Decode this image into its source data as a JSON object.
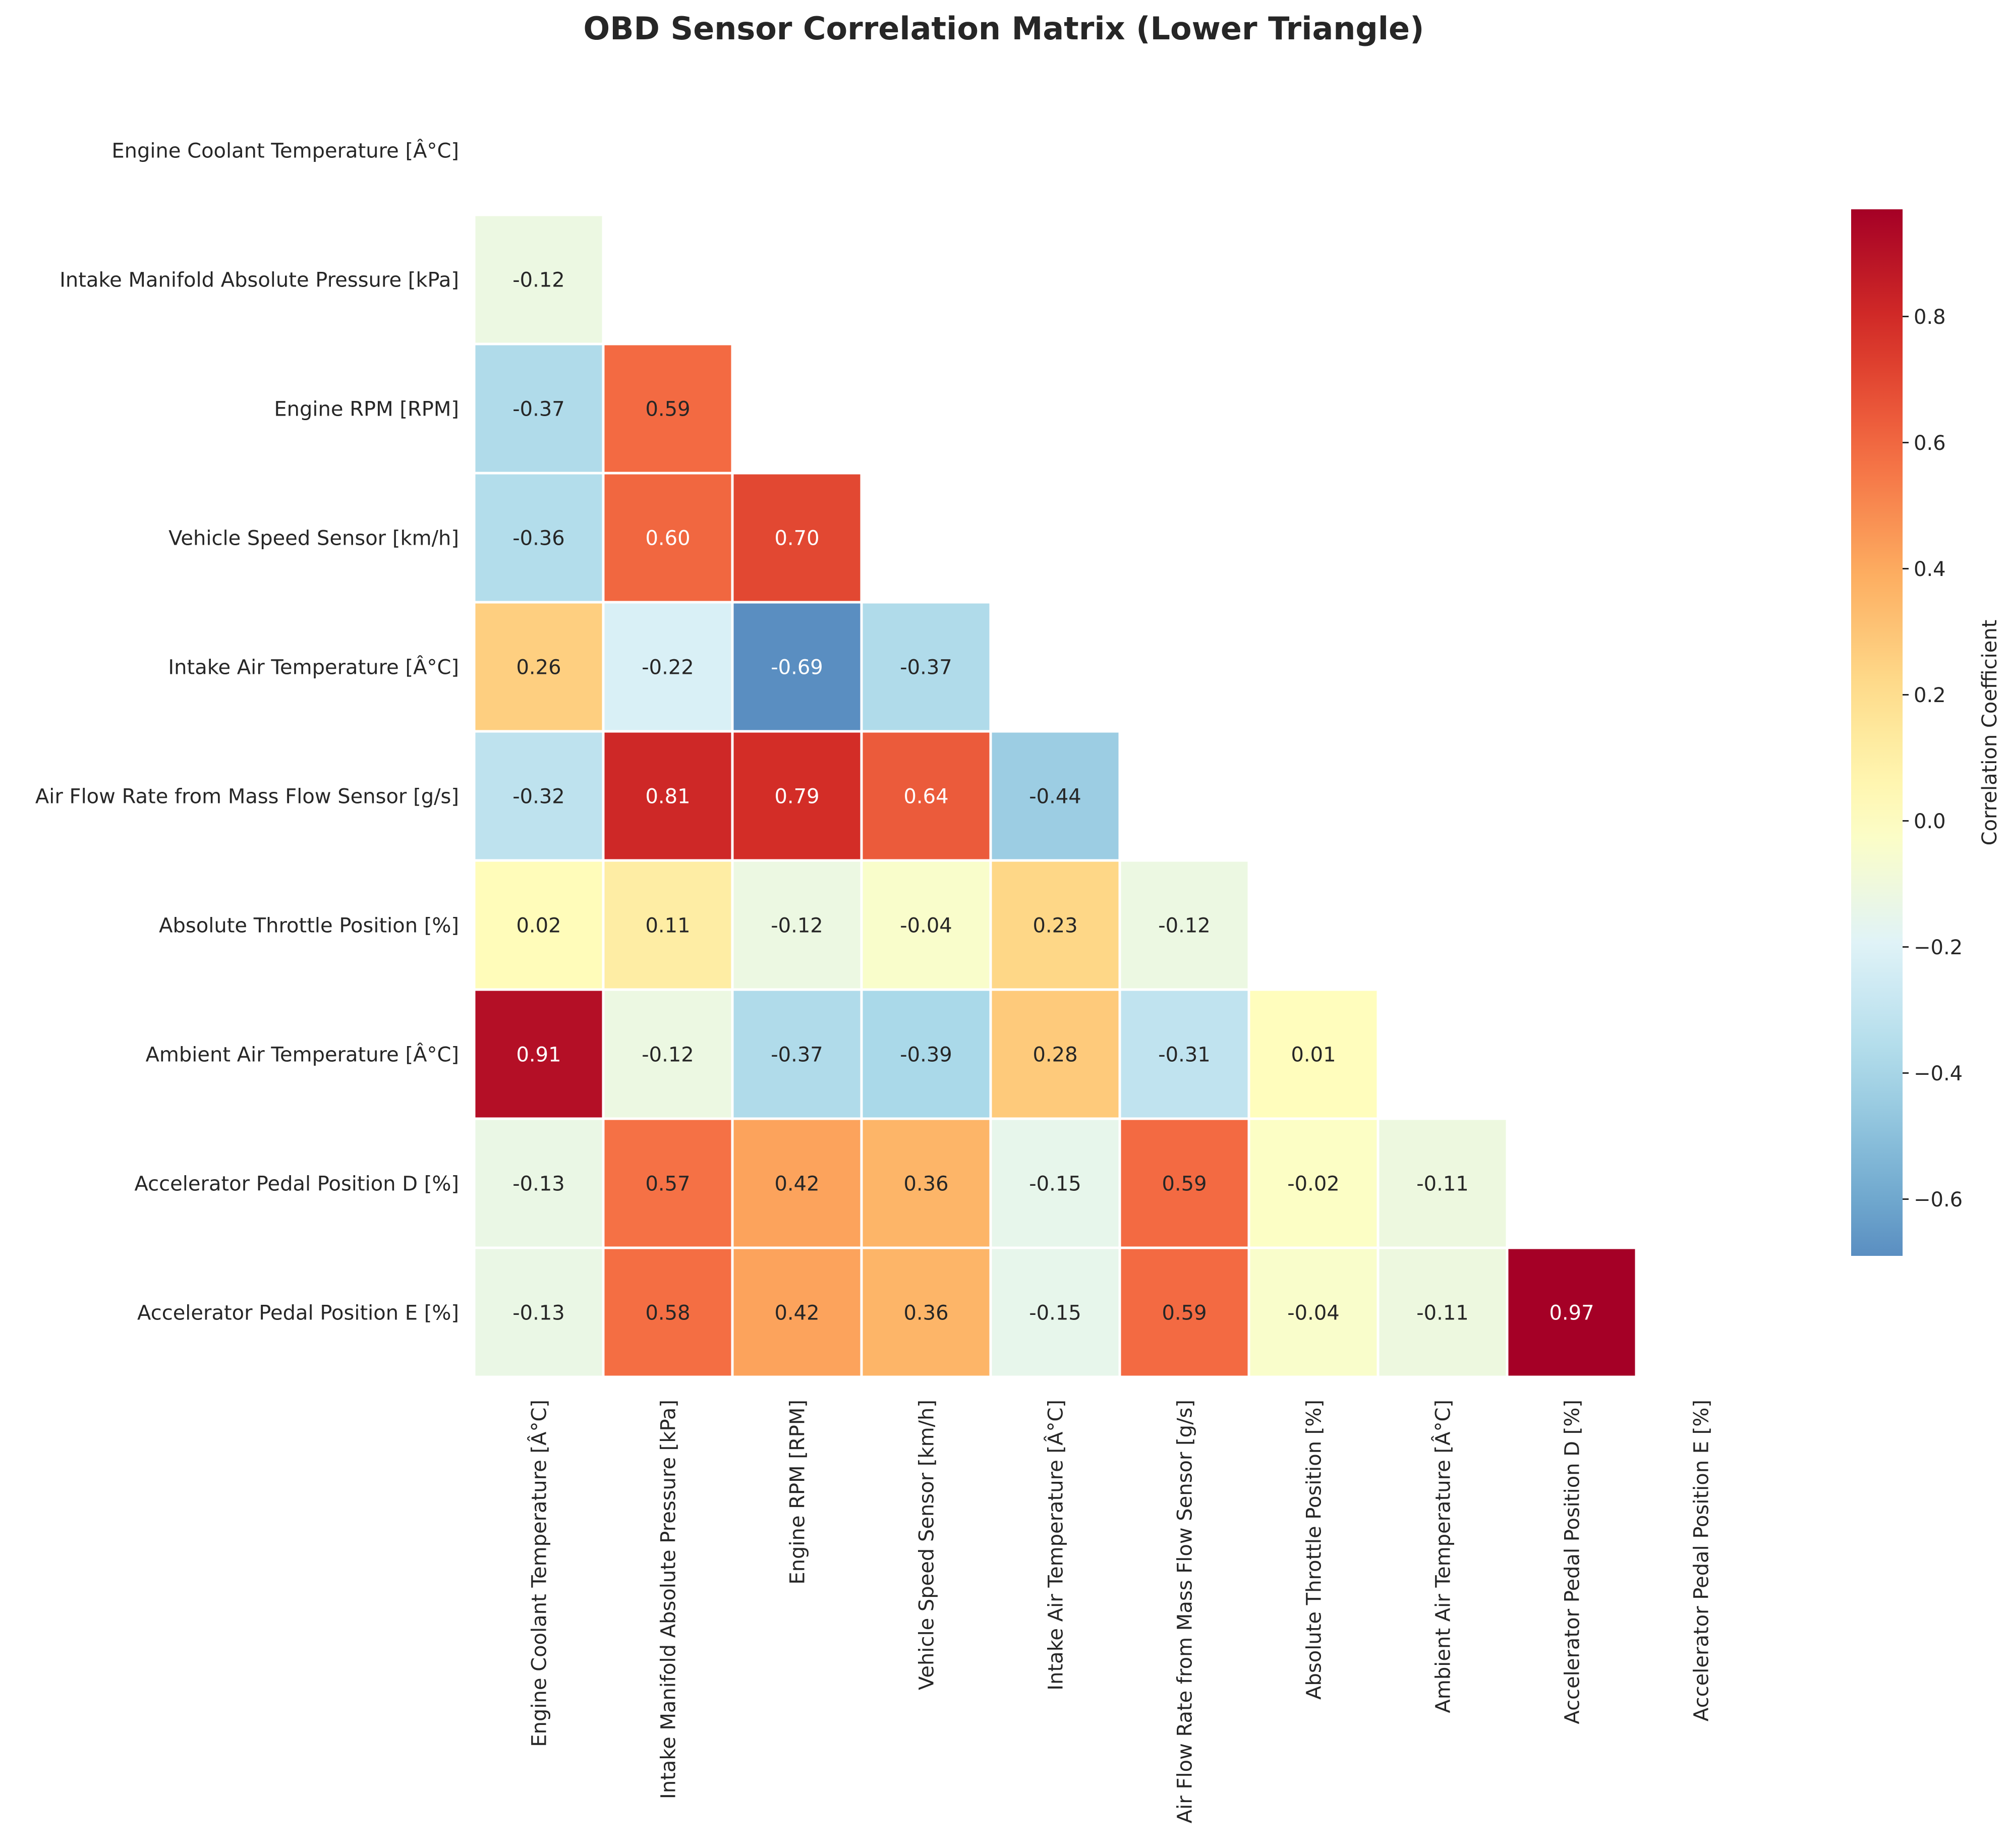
{
  "chart_data": {
    "type": "heatmap",
    "title": "OBD Sensor Correlation Matrix (Lower Triangle)",
    "variables": [
      "Engine Coolant Temperature [Â°C]",
      "Intake Manifold Absolute Pressure [kPa]",
      "Engine RPM [RPM]",
      "Vehicle Speed Sensor [km/h]",
      "Intake Air Temperature [Â°C]",
      "Air Flow Rate from Mass Flow Sensor [g/s]",
      "Absolute Throttle Position [%]",
      "Ambient Air Temperature [Â°C]",
      "Accelerator Pedal Position D [%]",
      "Accelerator Pedal Position E [%]"
    ],
    "mask": "upper triangle and diagonal hidden",
    "values": [
      [],
      [
        -0.12
      ],
      [
        -0.37,
        0.59
      ],
      [
        -0.36,
        0.6,
        0.7
      ],
      [
        0.26,
        -0.22,
        -0.69,
        -0.37
      ],
      [
        -0.32,
        0.81,
        0.79,
        0.64,
        -0.44
      ],
      [
        0.02,
        0.11,
        -0.12,
        -0.04,
        0.23,
        -0.12
      ],
      [
        0.91,
        -0.12,
        -0.37,
        -0.39,
        0.28,
        -0.31,
        0.01
      ],
      [
        -0.13,
        0.57,
        0.42,
        0.36,
        -0.15,
        0.59,
        -0.02,
        -0.11
      ],
      [
        -0.13,
        0.58,
        0.42,
        0.36,
        -0.15,
        0.59,
        -0.04,
        -0.11,
        0.97
      ]
    ],
    "colormap": "RdYlBu_r",
    "color_range": [
      -0.69,
      0.97
    ],
    "colorbar": {
      "label": "Correlation Coefficient",
      "ticks": [
        -0.6,
        -0.4,
        -0.2,
        0.0,
        0.2,
        0.4,
        0.6,
        0.8
      ],
      "tick_labels": [
        "−0.6",
        "−0.4",
        "−0.2",
        "0.0",
        "0.2",
        "0.4",
        "0.6",
        "0.8"
      ]
    },
    "value_format": "2 decimals",
    "grid": false
  },
  "colors": {
    "background": "#ffffff",
    "cell_border": "#ffffff",
    "text_dark": "#262626",
    "text_light": "#ffffff"
  }
}
